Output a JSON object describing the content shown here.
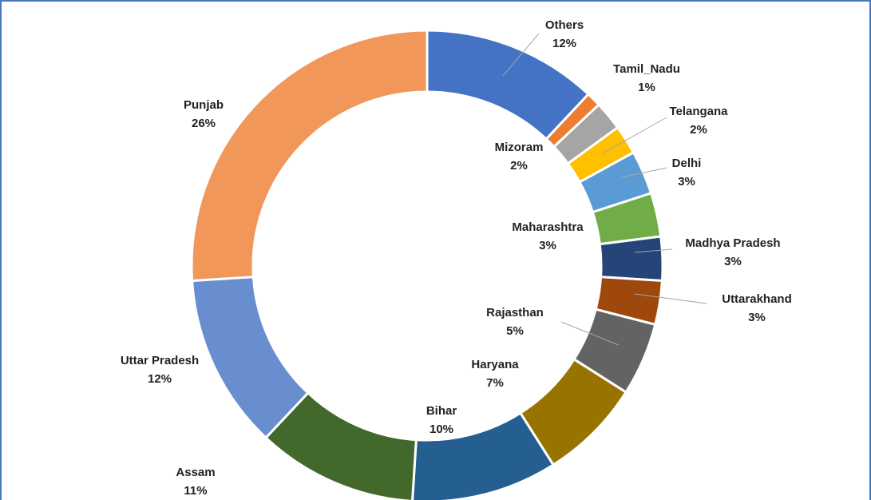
{
  "chart_data": {
    "type": "donut",
    "categories": [
      "Others",
      "Tamil_Nadu",
      "Mizoram",
      "Telangana",
      "Delhi",
      "Maharashtra",
      "Madhya  Pradesh",
      "Uttarakhand",
      "Rajasthan",
      "Haryana",
      "Bihar",
      "Assam",
      "Uttar Pradesh",
      "Punjab"
    ],
    "values": [
      12,
      1,
      2,
      2,
      3,
      3,
      3,
      3,
      5,
      7,
      10,
      11,
      12,
      26
    ],
    "value_labels": [
      "12%",
      "1%",
      "2%",
      "2%",
      "3%",
      "3%",
      "3%",
      "3%",
      "5%",
      "7%",
      "10%",
      "11%",
      "12%",
      "26%"
    ],
    "colors": [
      "#4472c4",
      "#ed7d31",
      "#a5a5a5",
      "#ffc000",
      "#5b9bd5",
      "#70ad47",
      "#264478",
      "#9e480e",
      "#636363",
      "#997300",
      "#255e91",
      "#43682b",
      "#698ed0",
      "#f1975a"
    ]
  }
}
